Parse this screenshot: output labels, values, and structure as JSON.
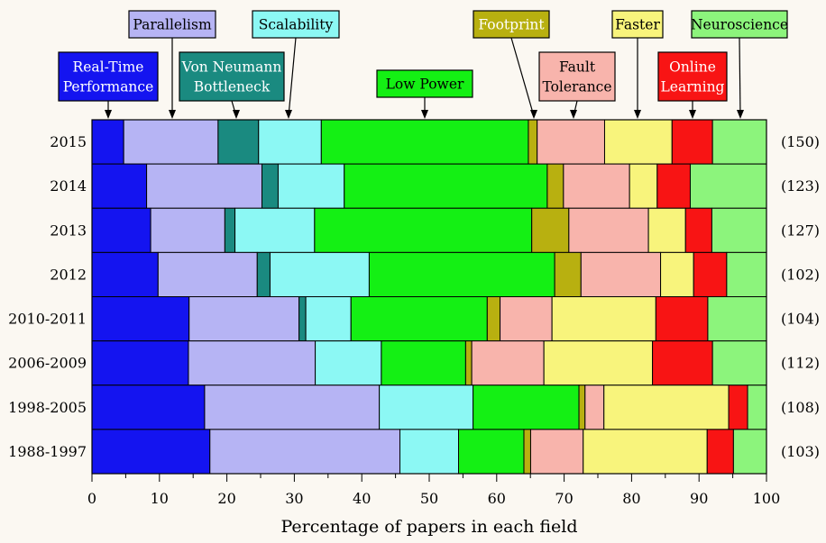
{
  "chart_data": {
    "type": "bar",
    "orientation": "horizontal",
    "stacked": true,
    "xlabel": "Percentage of papers in each field",
    "ylabel": "",
    "xlim": [
      0,
      100
    ],
    "xticks": [
      0,
      10,
      20,
      30,
      40,
      50,
      60,
      70,
      80,
      90,
      100
    ],
    "categories": [
      "2015",
      "2014",
      "2013",
      "2012",
      "2010-2011",
      "2006-2009",
      "1998-2005",
      "1988-1997"
    ],
    "counts": [
      "(150)",
      "(123)",
      "(127)",
      "(102)",
      "(104)",
      "(112)",
      "(108)",
      "(103)"
    ],
    "grid": false,
    "legend": "callout labels above plot",
    "series": [
      {
        "name": "Real-Time Performance",
        "label_lines": [
          "Real-Time",
          "Performance"
        ],
        "color": "#1414f0",
        "text_color": "#ffffff",
        "values": [
          4.7,
          8.1,
          8.7,
          9.8,
          14.4,
          14.3,
          16.7,
          17.5
        ]
      },
      {
        "name": "Parallelism",
        "label_lines": [
          "Parallelism"
        ],
        "color": "#b6b4f4",
        "text_color": "#000000",
        "values": [
          14.0,
          17.1,
          11.0,
          14.7,
          16.3,
          18.8,
          25.9,
          28.2
        ]
      },
      {
        "name": "Von Neumann Bottleneck",
        "label_lines": [
          "Von Neumann",
          "Bottleneck"
        ],
        "color": "#1a8a80",
        "text_color": "#ffffff",
        "values": [
          6.0,
          2.4,
          1.5,
          1.9,
          1.0,
          0.0,
          0.0,
          0.0
        ]
      },
      {
        "name": "Scalability",
        "label_lines": [
          "Scalability"
        ],
        "color": "#8cf8f4",
        "text_color": "#000000",
        "values": [
          9.3,
          9.8,
          11.8,
          14.7,
          6.7,
          9.8,
          13.9,
          8.7
        ]
      },
      {
        "name": "Low Power",
        "label_lines": [
          "Low Power"
        ],
        "color": "#14f014",
        "text_color": "#000000",
        "values": [
          30.7,
          30.1,
          32.2,
          27.5,
          20.2,
          12.5,
          15.7,
          9.7
        ]
      },
      {
        "name": "Footprint",
        "label_lines": [
          "Footprint"
        ],
        "color": "#b8b010",
        "text_color": "#ffffff",
        "values": [
          1.3,
          2.4,
          5.5,
          3.9,
          1.9,
          0.9,
          0.9,
          1.0
        ]
      },
      {
        "name": "Fault Tolerance",
        "label_lines": [
          "Fault",
          "Tolerance"
        ],
        "color": "#f8b4ac",
        "text_color": "#000000",
        "values": [
          10.0,
          9.8,
          11.8,
          11.8,
          7.7,
          10.7,
          2.8,
          7.8
        ]
      },
      {
        "name": "Faster",
        "label_lines": [
          "Faster"
        ],
        "color": "#f8f47c",
        "text_color": "#000000",
        "values": [
          10.0,
          4.1,
          5.5,
          4.9,
          15.4,
          16.1,
          18.5,
          18.4
        ]
      },
      {
        "name": "Online Learning",
        "label_lines": [
          "Online",
          "Learning"
        ],
        "color": "#f81414",
        "text_color": "#ffffff",
        "values": [
          6.0,
          4.9,
          3.9,
          4.9,
          7.7,
          8.9,
          2.8,
          3.9
        ]
      },
      {
        "name": "Neuroscience",
        "label_lines": [
          "Neuroscience"
        ],
        "color": "#8cf47c",
        "text_color": "#000000",
        "values": [
          8.0,
          11.3,
          8.1,
          5.9,
          8.7,
          8.0,
          2.8,
          4.9
        ]
      }
    ]
  }
}
